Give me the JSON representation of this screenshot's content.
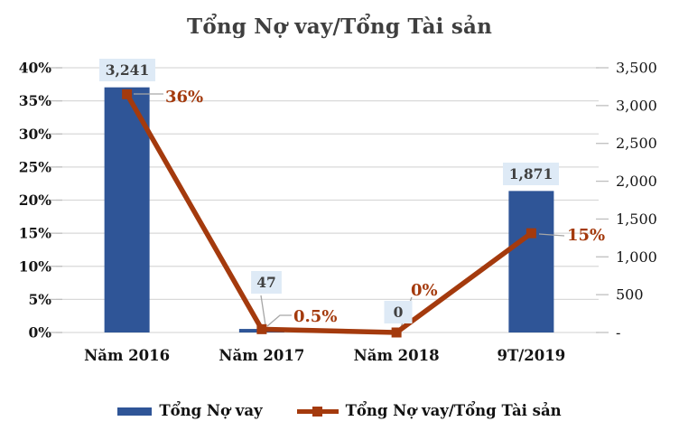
{
  "title": "Tổng Nợ vay/Tổng Tài sản",
  "colors": {
    "bar": "#2F5597",
    "line": "#A43A0D",
    "label_box_bg": "#DEEAF6",
    "label_text": "#404040",
    "pct_text": "#A43A0D",
    "grid": "#D9D9D9",
    "tick": "#BFBFBF",
    "leader": "#A6A6A6",
    "title_text": "#3F3F3F",
    "axis_text": "#151515"
  },
  "chart_data": {
    "type": "combo-bar-line",
    "title": "Tổng Nợ vay/Tổng Tài sản",
    "categories": [
      "Năm 2016",
      "Năm 2017",
      "Năm 2018",
      "9T/2019"
    ],
    "series": [
      {
        "name": "Tổng Nợ vay",
        "type": "bar",
        "axis": "right",
        "values": [
          3241,
          47,
          0,
          1871
        ],
        "labels": [
          "3,241",
          "47",
          "0",
          "1,871"
        ],
        "color": "#2F5597"
      },
      {
        "name": "Tổng Nợ vay/Tổng Tài sản",
        "type": "line",
        "axis": "left",
        "values": [
          0.36,
          0.005,
          0.0,
          0.15
        ],
        "labels": [
          "36%",
          "0.5%",
          "0%",
          "15%"
        ],
        "color": "#A43A0D"
      }
    ],
    "left_axis": {
      "min": 0,
      "max": 0.4,
      "ticks": [
        "0%",
        "5%",
        "10%",
        "15%",
        "20%",
        "25%",
        "30%",
        "35%",
        "40%"
      ]
    },
    "right_axis": {
      "min": 0,
      "max": 3500,
      "ticks": [
        "-",
        "500",
        "1,000",
        "1,500",
        "2,000",
        "2,500",
        "3,000",
        "3,500"
      ]
    },
    "grid": true,
    "legend_position": "bottom",
    "legend": [
      {
        "label": "Tổng Nợ vay",
        "type": "bar"
      },
      {
        "label": "Tổng Nợ vay/Tổng Tài sản",
        "type": "line"
      }
    ]
  }
}
